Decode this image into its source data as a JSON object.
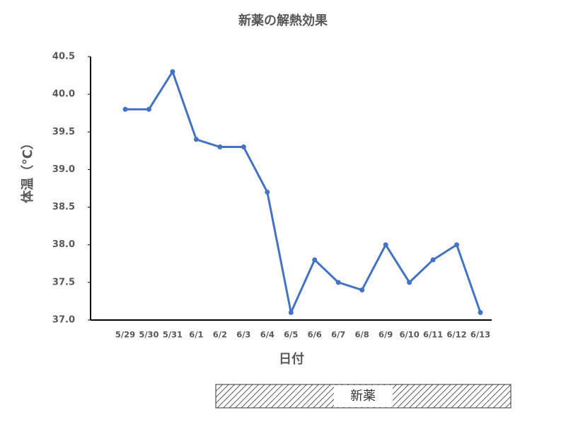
{
  "chart_data": {
    "type": "line",
    "title": "新薬の解熱効果",
    "x_label": "日付",
    "y_label": "体温（℃）",
    "categories": [
      "5/29",
      "5/30",
      "5/31",
      "6/1",
      "6/2",
      "6/3",
      "6/4",
      "6/5",
      "6/6",
      "6/7",
      "6/8",
      "6/9",
      "6/10",
      "6/11",
      "6/12",
      "6/13"
    ],
    "values": [
      39.8,
      39.8,
      40.3,
      39.4,
      39.3,
      39.3,
      38.7,
      37.1,
      37.8,
      37.5,
      37.4,
      38.0,
      37.5,
      37.8,
      38.0,
      37.1
    ],
    "color": "#4472c4",
    "ylim": [
      37,
      40.5
    ],
    "yticks": [
      {
        "value": 37,
        "label": "37.0"
      },
      37.5,
      {
        "value": 38,
        "label": "38.0"
      },
      38.5,
      {
        "value": 39,
        "label": "39.0"
      },
      39.5,
      {
        "value": 40,
        "label": "40.0"
      },
      40.5
    ],
    "grid": false,
    "annotation": "新薬"
  }
}
